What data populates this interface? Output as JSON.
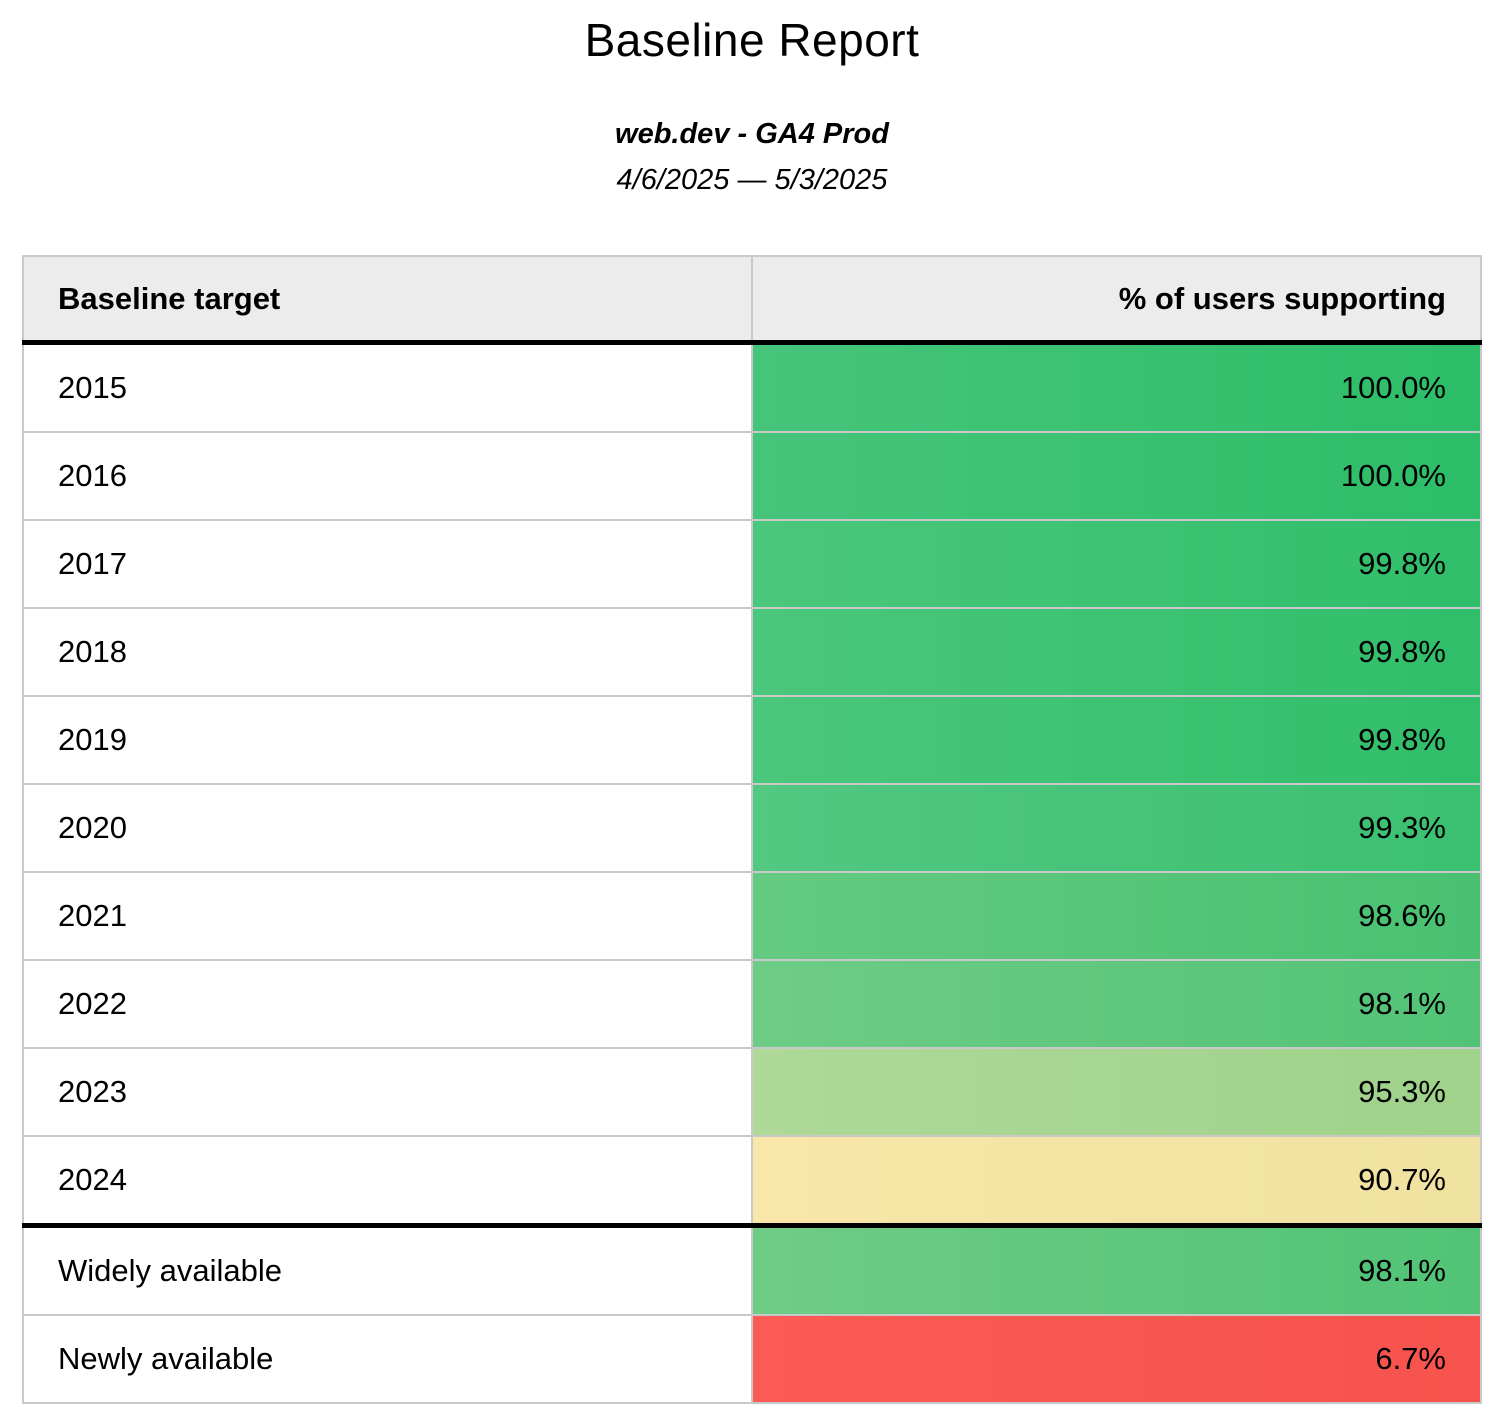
{
  "report": {
    "title": "Baseline Report",
    "subtitle": "web.dev - GA4 Prod",
    "date_range": "4/6/2025 — 5/3/2025"
  },
  "table": {
    "columns": [
      {
        "label": "Baseline target"
      },
      {
        "label": "% of users supporting"
      }
    ],
    "rows": [
      {
        "label": "2015",
        "value": "100.0%",
        "color_left": "#46c57a",
        "color_right": "#2dbd68",
        "divider_below": false
      },
      {
        "label": "2016",
        "value": "100.0%",
        "color_left": "#46c57a",
        "color_right": "#2dbd68",
        "divider_below": false
      },
      {
        "label": "2017",
        "value": "99.8%",
        "color_left": "#4ac77c",
        "color_right": "#30be6a",
        "divider_below": false
      },
      {
        "label": "2018",
        "value": "99.8%",
        "color_left": "#4ac77c",
        "color_right": "#30be6a",
        "divider_below": false
      },
      {
        "label": "2019",
        "value": "99.8%",
        "color_left": "#4ac77c",
        "color_right": "#30be6a",
        "divider_below": false
      },
      {
        "label": "2020",
        "value": "99.3%",
        "color_left": "#52c881",
        "color_right": "#3bc071",
        "divider_below": false
      },
      {
        "label": "2021",
        "value": "98.6%",
        "color_left": "#64ca82",
        "color_right": "#49c171",
        "divider_below": false
      },
      {
        "label": "2022",
        "value": "98.1%",
        "color_left": "#6ecc86",
        "color_right": "#52c376",
        "divider_below": false
      },
      {
        "label": "2023",
        "value": "95.3%",
        "color_left": "#aed997",
        "color_right": "#9fd28b",
        "divider_below": false
      },
      {
        "label": "2024",
        "value": "90.7%",
        "color_left": "#f8e7a8",
        "color_right": "#f0e2a0",
        "divider_below": true
      },
      {
        "label": "Widely available",
        "value": "98.1%",
        "color_left": "#6ecc86",
        "color_right": "#52c376",
        "divider_below": false
      },
      {
        "label": "Newly available",
        "value": "6.7%",
        "color_left": "#fa5b55",
        "color_right": "#f7534e",
        "divider_below": false
      }
    ]
  },
  "chart_data": {
    "type": "table",
    "title": "Baseline Report",
    "subtitle": "web.dev - GA4 Prod",
    "date_range": "4/6/2025 — 5/3/2025",
    "columns": [
      "Baseline target",
      "% of users supporting"
    ],
    "categories": [
      "2015",
      "2016",
      "2017",
      "2018",
      "2019",
      "2020",
      "2021",
      "2022",
      "2023",
      "2024",
      "Widely available",
      "Newly available"
    ],
    "values": [
      100.0,
      100.0,
      99.8,
      99.8,
      99.8,
      99.3,
      98.6,
      98.1,
      95.3,
      90.7,
      98.1,
      6.7
    ],
    "value_format": "percent",
    "layout": {
      "value_cells_colored": true,
      "color_scale": "green-yellow-red heatmap mapped to value",
      "header_background": "#ececec",
      "grid_color": "#c9c9c9",
      "thick_rule_color": "#000000",
      "thick_rules_after": [
        "header",
        "2024"
      ]
    }
  }
}
